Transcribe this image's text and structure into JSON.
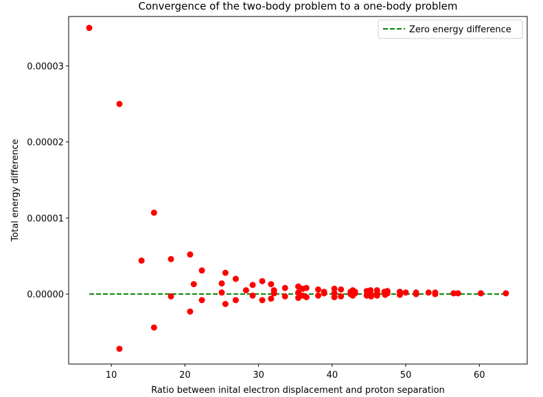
{
  "chart_data": {
    "type": "scatter",
    "title": "Convergence of the two-body problem to a one-body problem",
    "xlabel": "Ratio between inital electron displacement and proton separation",
    "ylabel": "Total energy difference",
    "xlim": [
      4.2,
      66.5
    ],
    "ylim": [
      -9.2e-06,
      3.65e-05
    ],
    "xticks": [
      10,
      20,
      30,
      40,
      50,
      60
    ],
    "xtick_labels": [
      "10",
      "20",
      "30",
      "40",
      "50",
      "60"
    ],
    "yticks": [
      0,
      1e-05,
      2e-05,
      3e-05
    ],
    "ytick_labels": [
      "0.00000",
      "0.00001",
      "0.00002",
      "0.00003"
    ],
    "grid": false,
    "legend_position": "top-right",
    "marker_color": "#ff0000",
    "line_color": "#008000",
    "series": [
      {
        "name": "Zero energy difference",
        "kind": "dashed-line",
        "x": [
          7.0,
          63.6
        ],
        "y": [
          0,
          0
        ]
      },
      {
        "kind": "scatter",
        "points": [
          [
            7.0,
            3.5e-05
          ],
          [
            11.1,
            2.5e-05
          ],
          [
            11.1,
            -7.2e-06
          ],
          [
            14.1,
            4.4e-06
          ],
          [
            15.8,
            1.07e-05
          ],
          [
            15.8,
            -4.4e-06
          ],
          [
            18.1,
            4.6e-06
          ],
          [
            18.1,
            -3e-07
          ],
          [
            20.7,
            5.2e-06
          ],
          [
            20.7,
            -2.3e-06
          ],
          [
            21.2,
            1.3e-06
          ],
          [
            22.3,
            3.1e-06
          ],
          [
            22.3,
            -8e-07
          ],
          [
            25.0,
            1.4e-06
          ],
          [
            25.0,
            2e-07
          ],
          [
            25.5,
            2.8e-06
          ],
          [
            25.5,
            -1.3e-06
          ],
          [
            26.9,
            2e-06
          ],
          [
            26.9,
            -8e-07
          ],
          [
            28.3,
            5e-07
          ],
          [
            29.2,
            1.2e-06
          ],
          [
            29.2,
            -2e-07
          ],
          [
            30.5,
            1.7e-06
          ],
          [
            30.5,
            -8e-07
          ],
          [
            31.7,
            1.3e-06
          ],
          [
            31.7,
            -6e-07
          ],
          [
            32.1,
            5e-07
          ],
          [
            32.1,
            1e-07
          ],
          [
            33.6,
            8e-07
          ],
          [
            33.6,
            -3e-07
          ],
          [
            35.4,
            1e-06
          ],
          [
            35.4,
            2e-07
          ],
          [
            35.4,
            -5e-07
          ],
          [
            36.0,
            7e-07
          ],
          [
            36.0,
            -2e-07
          ],
          [
            36.5,
            8e-07
          ],
          [
            36.5,
            -4e-07
          ],
          [
            38.1,
            6e-07
          ],
          [
            38.1,
            -2e-07
          ],
          [
            38.9,
            3e-07
          ],
          [
            38.9,
            1e-07
          ],
          [
            40.3,
            7e-07
          ],
          [
            40.3,
            1e-07
          ],
          [
            40.3,
            -4e-07
          ],
          [
            41.2,
            6e-07
          ],
          [
            41.2,
            -3e-07
          ],
          [
            42.5,
            3e-07
          ],
          [
            42.5,
            0.0
          ],
          [
            42.8,
            5e-07
          ],
          [
            42.8,
            -2e-07
          ],
          [
            43.1,
            3e-07
          ],
          [
            43.1,
            1e-07
          ],
          [
            44.7,
            4e-07
          ],
          [
            44.7,
            -2e-07
          ],
          [
            45.2,
            5e-07
          ],
          [
            45.2,
            1e-07
          ],
          [
            45.3,
            -3e-07
          ],
          [
            46.1,
            5e-07
          ],
          [
            46.1,
            1e-07
          ],
          [
            46.1,
            -2e-07
          ],
          [
            47.1,
            3e-07
          ],
          [
            47.2,
            -1e-07
          ],
          [
            47.5,
            4e-07
          ],
          [
            47.5,
            1e-07
          ],
          [
            49.2,
            3e-07
          ],
          [
            49.2,
            -1e-07
          ],
          [
            50.0,
            2e-07
          ],
          [
            51.4,
            2e-07
          ],
          [
            51.4,
            0.0
          ],
          [
            53.1,
            2e-07
          ],
          [
            54.0,
            2e-07
          ],
          [
            54.0,
            0.0
          ],
          [
            56.5,
            1e-07
          ],
          [
            57.1,
            1e-07
          ],
          [
            60.2,
            1e-07
          ],
          [
            63.6,
            1e-07
          ]
        ]
      }
    ]
  }
}
